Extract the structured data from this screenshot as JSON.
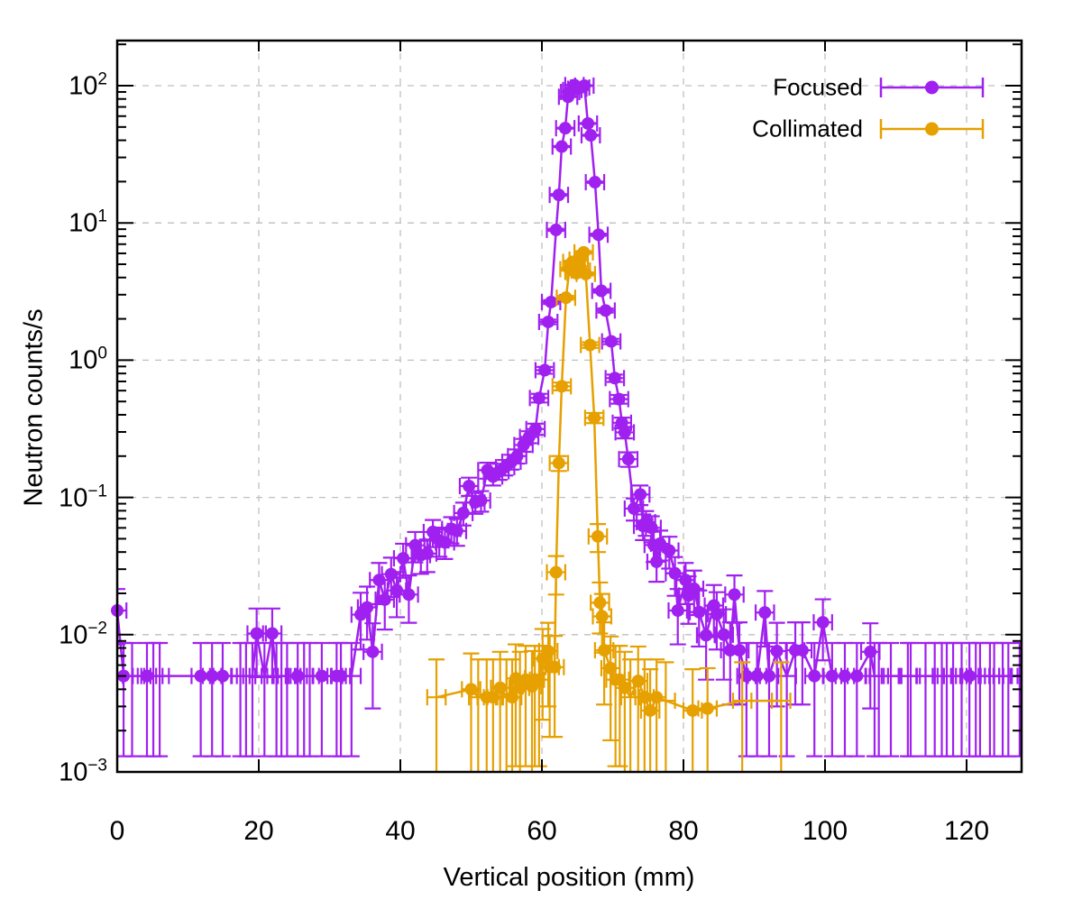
{
  "chart_data": {
    "type": "scatter",
    "style": "linespoints with xy error bars",
    "title": "",
    "xlabel": "Vertical position (mm)",
    "ylabel": "Neutron counts/s",
    "x_axis": {
      "min": 0,
      "max": 127.8,
      "ticks": [
        0,
        20,
        40,
        60,
        80,
        100,
        120
      ]
    },
    "y_axis": {
      "scale": "log",
      "min": 0.001,
      "max": 214,
      "tick_exponents": [
        2,
        1,
        0,
        -1,
        -2,
        -3
      ]
    },
    "grid": "dashed gray at major ticks",
    "legend_position": "top-right-inside",
    "xerr_halfwidth_mm": 1.3,
    "point_format": "[x_mm, counts_per_s, yerr, marker_flag(optional,0=no marker)]",
    "series": [
      {
        "name": "Focused",
        "color": "#a020f0",
        "points": [
          [
            0,
            0.015,
            0.0065
          ],
          [
            0.9,
            0.005,
            0.0037
          ],
          [
            2.1,
            0.005,
            0.0037,
            0
          ],
          [
            4.2,
            0.005,
            0.0037
          ],
          [
            5.1,
            0.005,
            0.0037,
            0
          ],
          [
            6.0,
            0.005,
            0.0037,
            0
          ],
          [
            11.8,
            0.005,
            0.0037
          ],
          [
            13.4,
            0.005,
            0.0037
          ],
          [
            14.9,
            0.005,
            0.0037
          ],
          [
            17.4,
            0.005,
            0.0037,
            0
          ],
          [
            18.2,
            0.005,
            0.0037,
            0
          ],
          [
            19.1,
            0.005,
            0.0037,
            0
          ],
          [
            19.7,
            0.0102,
            0.0053
          ],
          [
            20.8,
            0.005,
            0.0037,
            0
          ],
          [
            21.9,
            0.0102,
            0.0053
          ],
          [
            22.5,
            0.005,
            0.0037,
            0
          ],
          [
            23.2,
            0.005,
            0.0037,
            0
          ],
          [
            24.0,
            0.005,
            0.0037,
            0
          ],
          [
            25.5,
            0.005,
            0.0037
          ],
          [
            26.4,
            0.005,
            0.0037,
            0
          ],
          [
            27.2,
            0.005,
            0.0037,
            0
          ],
          [
            28.9,
            0.005,
            0.0037
          ],
          [
            31.0,
            0.005,
            0.0037
          ],
          [
            31.6,
            0.005,
            0.0037
          ],
          [
            33.1,
            0.005,
            0.0037,
            0
          ],
          [
            34.4,
            0.014,
            0.0062
          ],
          [
            35.3,
            0.0158,
            0.0066
          ],
          [
            36.1,
            0.0075,
            0.0046
          ],
          [
            37.0,
            0.025,
            0.0083
          ],
          [
            37.8,
            0.018,
            0.0071
          ],
          [
            38.7,
            0.0276,
            0.0088
          ],
          [
            39.5,
            0.021,
            0.0076
          ],
          [
            40.4,
            0.036,
            0.01
          ],
          [
            41.2,
            0.0196,
            0.0074
          ],
          [
            42.1,
            0.0448,
            0.0112
          ],
          [
            42.9,
            0.038,
            0.0103
          ],
          [
            43.8,
            0.039,
            0.0104
          ],
          [
            44.6,
            0.056,
            0.0125
          ],
          [
            45.5,
            0.0486,
            0.0116
          ],
          [
            46.3,
            0.047,
            0.0114
          ],
          [
            47.2,
            0.059,
            0.0128
          ],
          [
            48.0,
            0.057,
            0.0126
          ],
          [
            48.9,
            0.077,
            0.0146
          ],
          [
            49.7,
            0.121,
            0.0183
          ],
          [
            50.6,
            0.092,
            0.016
          ],
          [
            51.4,
            0.095,
            0.0162
          ],
          [
            52.3,
            0.158,
            0.021
          ],
          [
            53.1,
            0.142,
            0.0199
          ],
          [
            54.0,
            0.155,
            0.0208
          ],
          [
            54.8,
            0.166,
            0.0215
          ],
          [
            55.7,
            0.182,
            0.0225
          ],
          [
            56.5,
            0.2,
            0.0236
          ],
          [
            57.4,
            0.241,
            0.0259
          ],
          [
            58.2,
            0.276,
            0.0277
          ],
          [
            59.1,
            0.315,
            0.0296
          ],
          [
            59.6,
            0.53,
            0.0384
          ],
          [
            60.4,
            0.845,
            0.0485
          ],
          [
            60.9,
            1.9,
            0.0727
          ],
          [
            61.3,
            2.65,
            0.0858
          ],
          [
            62.0,
            8.9,
            0.157
          ],
          [
            62.4,
            16,
            0.211
          ],
          [
            62.8,
            36,
            0.316
          ],
          [
            63.3,
            49,
            0.369
          ],
          [
            63.7,
            83,
            0.48
          ],
          [
            64.0,
            90,
            0.5
          ],
          [
            64.3,
            93,
            0.508
          ],
          [
            64.6,
            101,
            0.53
          ],
          [
            65.0,
            95,
            0.514
          ],
          [
            65.4,
            97,
            0.519
          ],
          [
            66.0,
            100,
            0.527
          ],
          [
            66.5,
            53,
            0.384
          ],
          [
            66.9,
            43.5,
            0.348
          ],
          [
            67.5,
            19.8,
            0.235
          ],
          [
            68.0,
            8.2,
            0.151
          ],
          [
            68.4,
            3.2,
            0.0943
          ],
          [
            69.0,
            2.3,
            0.08
          ],
          [
            69.8,
            1.37,
            0.0617
          ],
          [
            70.3,
            0.74,
            0.0453
          ],
          [
            70.9,
            0.52,
            0.038
          ],
          [
            71.3,
            0.35,
            0.0312
          ],
          [
            71.7,
            0.298,
            0.0288
          ],
          [
            72.2,
            0.19,
            0.023
          ],
          [
            73.0,
            0.083,
            0.0152
          ],
          [
            73.9,
            0.105,
            0.0171
          ],
          [
            74.3,
            0.062,
            0.0131
          ],
          [
            74.7,
            0.066,
            0.0135
          ],
          [
            75.5,
            0.06,
            0.0129
          ],
          [
            75.8,
            0.045,
            0.0112
          ],
          [
            76.2,
            0.034,
            0.0097
          ],
          [
            76.7,
            0.046,
            0.0113
          ],
          [
            78.0,
            0.041,
            0.0107
          ],
          [
            78.8,
            0.028,
            0.0088
          ],
          [
            79.2,
            0.015,
            0.0065
          ],
          [
            80.3,
            0.025,
            0.0083
          ],
          [
            80.7,
            0.0193,
            0.0073
          ],
          [
            81.5,
            0.0216,
            0.0077
          ],
          [
            82.2,
            0.0146,
            0.0064
          ],
          [
            83.2,
            0.0099,
            0.0052
          ],
          [
            84.3,
            0.0163,
            0.0067
          ],
          [
            84.7,
            0.0141,
            0.0063
          ],
          [
            85.7,
            0.01,
            0.0053
          ],
          [
            86.6,
            0.0077,
            0.0046
          ],
          [
            87.2,
            0.0196,
            0.0074
          ],
          [
            87.9,
            0.0077,
            0.0046
          ],
          [
            88.9,
            0.005,
            0.0037
          ],
          [
            90.4,
            0.005,
            0.0037
          ],
          [
            91.5,
            0.0145,
            0.0063
          ],
          [
            92.1,
            0.005,
            0.0037
          ],
          [
            93.2,
            0.0076,
            0.0046
          ],
          [
            94.6,
            0.005,
            0.0037,
            0
          ],
          [
            95.8,
            0.0077,
            0.0046
          ],
          [
            96.8,
            0.0077,
            0.0046
          ],
          [
            98.5,
            0.005,
            0.0037
          ],
          [
            99.7,
            0.0123,
            0.0058
          ],
          [
            101.0,
            0.005,
            0.0037
          ],
          [
            102.8,
            0.005,
            0.0037
          ],
          [
            104.5,
            0.005,
            0.0037
          ],
          [
            106.4,
            0.0075,
            0.0046
          ],
          [
            107.0,
            0.005,
            0.0037,
            0
          ],
          [
            107.6,
            0.005,
            0.0037,
            0
          ],
          [
            109.3,
            0.005,
            0.0037,
            0
          ],
          [
            111.7,
            0.005,
            0.0037,
            0
          ],
          [
            112.1,
            0.005,
            0.0037,
            0
          ],
          [
            114.2,
            0.005,
            0.0037,
            0
          ],
          [
            115.5,
            0.005,
            0.0037,
            0
          ],
          [
            116.5,
            0.005,
            0.0037,
            0
          ],
          [
            117.2,
            0.005,
            0.0037,
            0
          ],
          [
            118.1,
            0.005,
            0.0037,
            0
          ],
          [
            119.3,
            0.005,
            0.0037,
            0
          ],
          [
            120.4,
            0.005,
            0.0037
          ],
          [
            121.3,
            0.005,
            0.0037,
            0
          ],
          [
            121.9,
            0.005,
            0.0037,
            0
          ],
          [
            123.3,
            0.005,
            0.0037,
            0
          ],
          [
            123.9,
            0.005,
            0.0037,
            0
          ],
          [
            125.1,
            0.005,
            0.0037,
            0
          ],
          [
            125.9,
            0.005,
            0.0037,
            0
          ],
          [
            127.5,
            0.005,
            0.0037,
            0
          ]
        ]
      },
      {
        "name": "Collimated",
        "color": "#e6a000",
        "points": [
          [
            45.1,
            0.0035,
            0.0031,
            0
          ],
          [
            50.0,
            0.004,
            0.0033
          ],
          [
            51.0,
            0.0035,
            0.0031,
            0
          ],
          [
            52.2,
            0.0035,
            0.0031
          ],
          [
            53.1,
            0.0035,
            0.0031
          ],
          [
            54.1,
            0.0041,
            0.0034
          ],
          [
            55.0,
            0.0035,
            0.0031,
            0
          ],
          [
            55.8,
            0.0035,
            0.0031
          ],
          [
            56.3,
            0.0048,
            0.0037
          ],
          [
            56.9,
            0.0041,
            0.0034
          ],
          [
            57.7,
            0.0047,
            0.0036
          ],
          [
            58.6,
            0.0042,
            0.0034
          ],
          [
            59.0,
            0.0047,
            0.0036
          ],
          [
            59.6,
            0.0047,
            0.0036
          ],
          [
            60.1,
            0.0067,
            0.0043
          ],
          [
            60.9,
            0.0076,
            0.0046
          ],
          [
            61.1,
            0.0058,
            0.004
          ],
          [
            61.8,
            0.0058,
            0.004
          ],
          [
            62.0,
            0.0285,
            0.0089
          ],
          [
            62.4,
            0.178,
            0.0222
          ],
          [
            62.8,
            0.645,
            0.0423
          ],
          [
            63.4,
            2.85,
            0.089
          ],
          [
            63.9,
            4.6,
            0.113
          ],
          [
            64.3,
            5.2,
            0.12
          ],
          [
            64.6,
            4.4,
            0.111
          ],
          [
            64.9,
            4.3,
            0.109
          ],
          [
            65.2,
            5.4,
            0.122
          ],
          [
            65.5,
            4.5,
            0.112
          ],
          [
            65.9,
            6.1,
            0.13
          ],
          [
            66.2,
            4.25,
            0.109
          ],
          [
            66.8,
            1.29,
            0.06
          ],
          [
            67.4,
            0.38,
            0.0325
          ],
          [
            67.9,
            0.052,
            0.012
          ],
          [
            68.2,
            0.0171,
            0.0069
          ],
          [
            68.5,
            0.0136,
            0.0062
          ],
          [
            68.8,
            0.0077,
            0.0046
          ],
          [
            69.7,
            0.0057,
            0.004
          ],
          [
            70.4,
            0.0047,
            0.0036
          ],
          [
            71.0,
            0.0047,
            0.0036
          ],
          [
            71.7,
            0.0041,
            0.0034
          ],
          [
            72.5,
            0.0035,
            0.0031,
            0
          ],
          [
            73.6,
            0.0046,
            0.0036
          ],
          [
            74.5,
            0.0035,
            0.0031
          ],
          [
            75.3,
            0.0028,
            0.0028
          ],
          [
            76.2,
            0.0035,
            0.0031
          ],
          [
            77.5,
            0.0033,
            0.003,
            0
          ],
          [
            81.3,
            0.0028,
            0.0028
          ],
          [
            83.4,
            0.0029,
            0.0028
          ],
          [
            88.3,
            0.0033,
            0.003,
            0
          ],
          [
            93.8,
            0.0033,
            0.003,
            0
          ]
        ]
      }
    ]
  }
}
